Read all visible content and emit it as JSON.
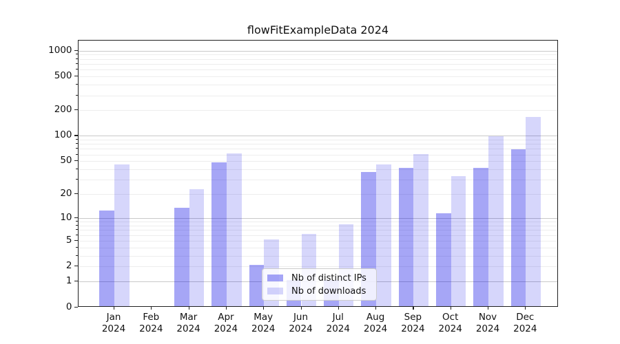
{
  "chart_data": {
    "type": "bar",
    "title": "flowFitExampleData 2024",
    "categories": [
      "Jan 2024",
      "Feb 2024",
      "Mar 2024",
      "Apr 2024",
      "May 2024",
      "Jun 2024",
      "Jul 2024",
      "Aug 2024",
      "Sep 2024",
      "Oct 2024",
      "Nov 2024",
      "Dec 2024"
    ],
    "series": [
      {
        "name": "Nb of distinct IPs",
        "color": "#0000E659",
        "values": [
          12,
          0,
          13,
          47,
          2,
          1,
          1,
          36,
          40,
          11,
          40,
          67
        ]
      },
      {
        "name": "Nb of downloads",
        "color": "#0000E629",
        "values": [
          44,
          0,
          22,
          60,
          5,
          6,
          8,
          44,
          58,
          32,
          95,
          160
        ]
      }
    ],
    "xlabel": "",
    "ylabel": "",
    "yscale": "log1p",
    "y_ticks": {
      "values": [
        0,
        1,
        2,
        5,
        10,
        20,
        50,
        100,
        200,
        500,
        1000
      ],
      "labels": [
        "0",
        "1",
        "2",
        "5",
        "10",
        "20",
        "50",
        "100",
        "200",
        "500",
        "1000"
      ]
    },
    "ylim": [
      0,
      1300
    ],
    "grid": "major+minor",
    "legend_position": "lower center",
    "colors": {
      "major_gridline": "#c8c8c8",
      "minor_gridline": "#ededed",
      "axis": "#1f1f1f"
    }
  }
}
